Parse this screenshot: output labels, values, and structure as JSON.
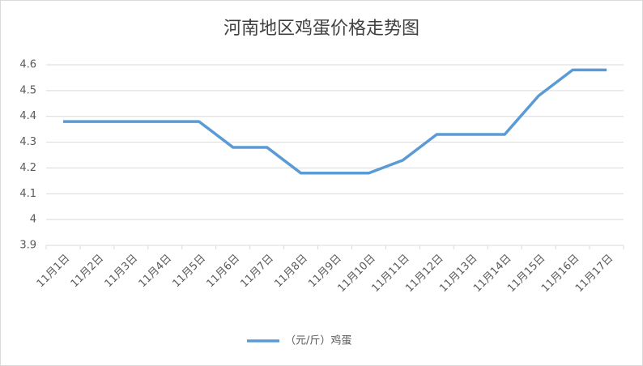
{
  "chart_data": {
    "type": "line",
    "title": "河南地区鸡蛋价格走势图",
    "categories": [
      "11月1日",
      "11月2日",
      "11月3日",
      "11月4日",
      "11月5日",
      "11月6日",
      "11月7日",
      "11月8日",
      "11月9日",
      "11月10日",
      "11月11日",
      "11月12日",
      "11月13日",
      "11月14日",
      "11月15日",
      "11月16日",
      "11月17日"
    ],
    "series": [
      {
        "name": "（元/斤）鸡蛋",
        "color": "#5b9bd5",
        "values": [
          4.38,
          4.38,
          4.38,
          4.38,
          4.38,
          4.28,
          4.28,
          4.18,
          4.18,
          4.18,
          4.23,
          4.33,
          4.33,
          4.33,
          4.48,
          4.58,
          4.58
        ]
      }
    ],
    "ylim": [
      3.9,
      4.6
    ],
    "yticks": [
      3.9,
      4,
      4.1,
      4.2,
      4.3,
      4.4,
      4.5,
      4.6
    ],
    "grid": true,
    "legend": "bottom"
  }
}
